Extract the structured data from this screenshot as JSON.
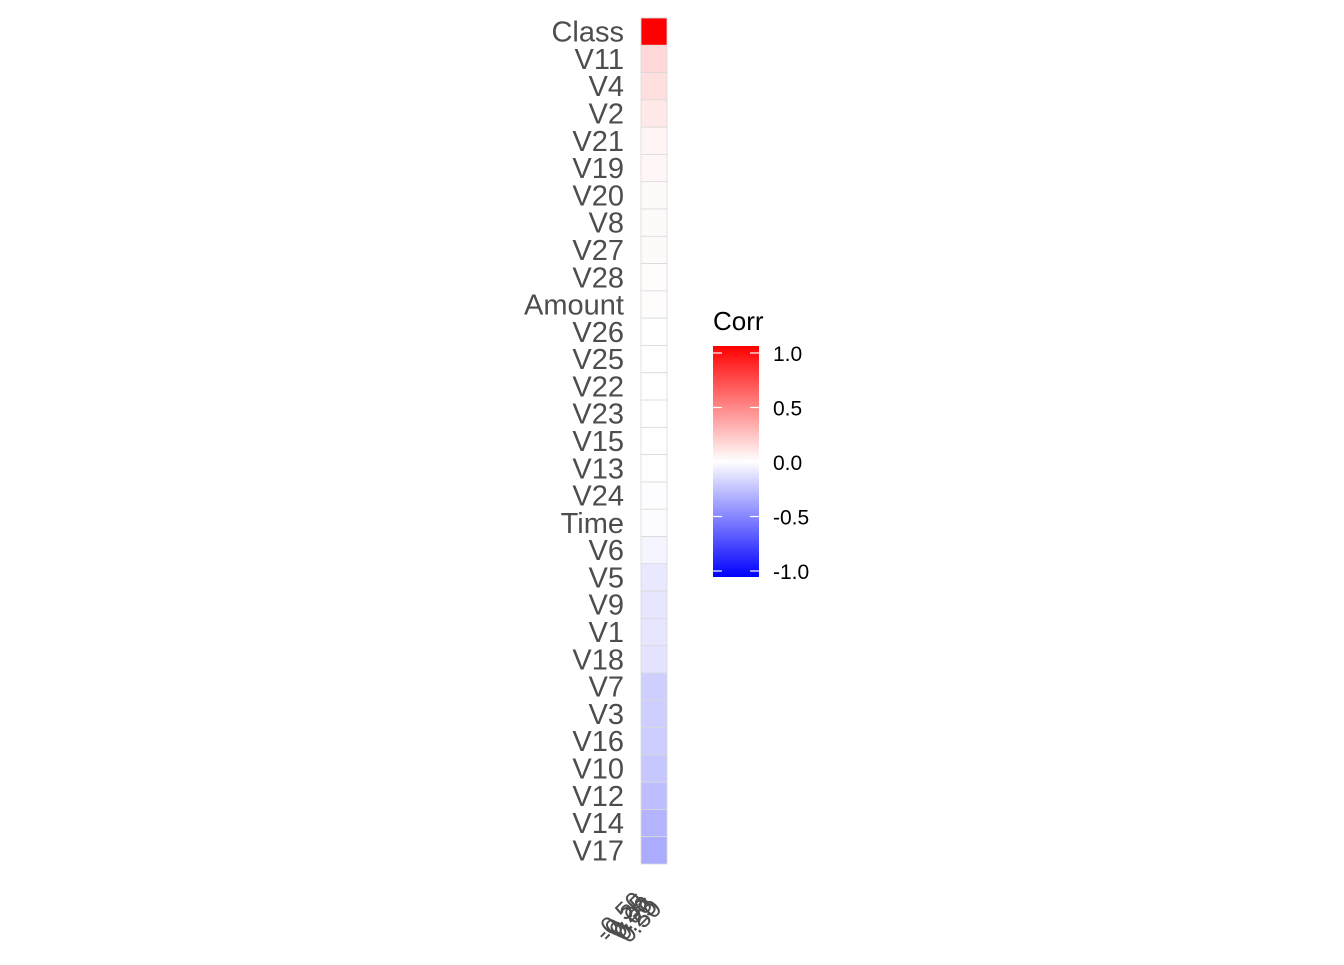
{
  "chart_data": {
    "type": "heatmap",
    "title": "",
    "xlabel": "",
    "ylabel": "",
    "rows": [
      "Class",
      "V11",
      "V4",
      "V2",
      "V21",
      "V19",
      "V20",
      "V8",
      "V27",
      "V28",
      "Amount",
      "V26",
      "V25",
      "V22",
      "V23",
      "V15",
      "V13",
      "V24",
      "Time",
      "V6",
      "V5",
      "V9",
      "V1",
      "V18",
      "V7",
      "V3",
      "V16",
      "V10",
      "V12",
      "V14",
      "V17"
    ],
    "values": [
      1.0,
      0.15,
      0.13,
      0.09,
      0.04,
      0.03,
      0.02,
      0.02,
      0.02,
      0.01,
      0.01,
      0.0,
      0.0,
      0.0,
      0.0,
      0.0,
      -0.005,
      -0.007,
      -0.012,
      -0.04,
      -0.09,
      -0.1,
      -0.1,
      -0.11,
      -0.19,
      -0.19,
      -0.2,
      -0.22,
      -0.26,
      -0.3,
      -0.33
    ],
    "x_tick_labels": [
      "-0.50",
      "-0.25",
      "0.00",
      "0.25",
      "0.50"
    ],
    "color_scale": {
      "low": "#0000ff",
      "mid": "#ffffff",
      "high": "#ff0000",
      "min": -1.0,
      "max": 1.0
    },
    "legend": {
      "title": "Corr",
      "position": "right",
      "ticks": [
        1.0,
        0.5,
        0.0,
        -0.5,
        -1.0
      ],
      "tick_labels": [
        "1.0",
        "0.5",
        "0.0",
        "-0.5",
        "-1.0"
      ]
    },
    "grid": false
  }
}
